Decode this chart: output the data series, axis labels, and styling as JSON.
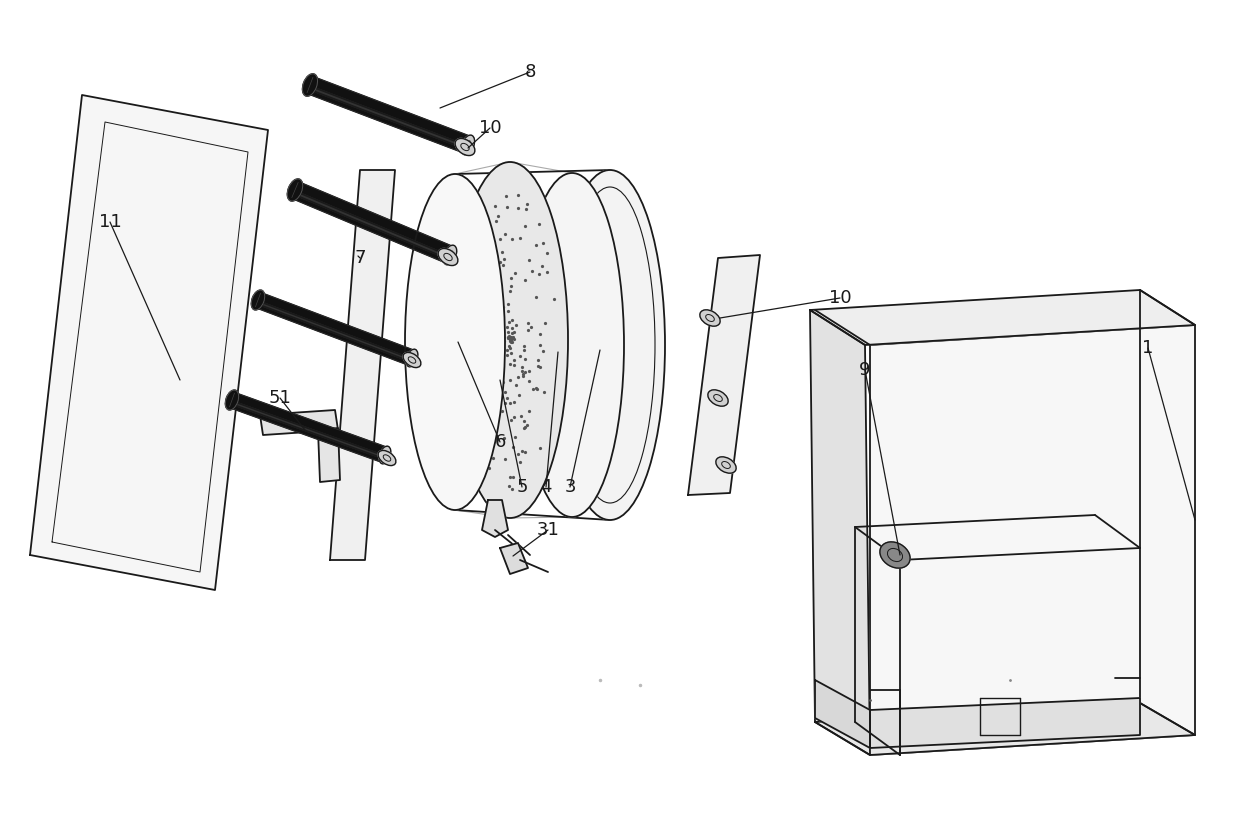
{
  "bg": "#ffffff",
  "lc": "#1a1a1a",
  "figsize": [
    12.4,
    8.31
  ],
  "dpi": 100,
  "lw": 1.3,
  "label_fs": 13
}
